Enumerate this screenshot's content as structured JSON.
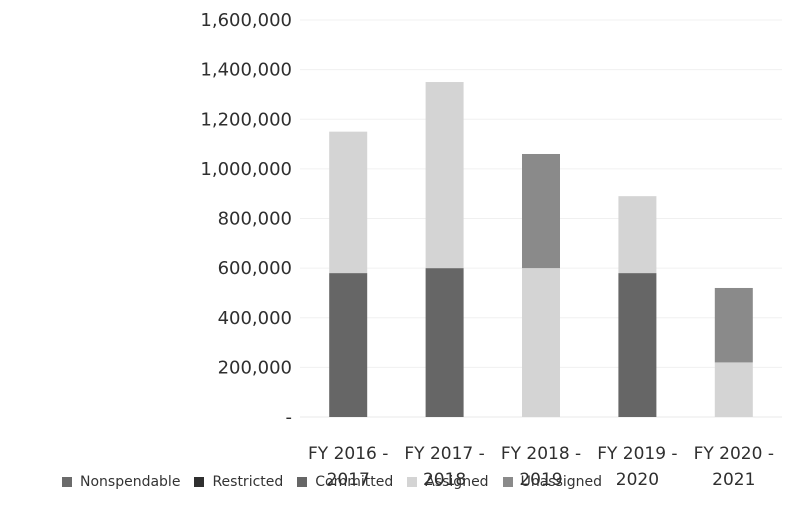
{
  "chart_data": {
    "type": "bar",
    "stacked": true,
    "categories": [
      "FY 2016 - 2017",
      "FY 2017 - 2018",
      "FY 2018 - 2019",
      "FY 2019 - 2020",
      "FY 2020 - 2021"
    ],
    "series": [
      {
        "name": "Nonspendable",
        "values": [
          0,
          0,
          0,
          0,
          0
        ],
        "color": "#6b6b6b"
      },
      {
        "name": "Restricted",
        "values": [
          0,
          0,
          0,
          0,
          0
        ],
        "color": "#2f2f2f"
      },
      {
        "name": "Committed",
        "values": [
          580000,
          600000,
          0,
          580000,
          0
        ],
        "color": "#666666"
      },
      {
        "name": "Assigned",
        "values": [
          570000,
          750000,
          600000,
          310000,
          220000
        ],
        "color": "#d4d4d4"
      },
      {
        "name": "Unassigned",
        "values": [
          0,
          0,
          460000,
          0,
          300000
        ],
        "color": "#8a8a8a"
      }
    ],
    "yticks": [
      "-",
      "200,000",
      "400,000",
      "600,000",
      "800,000",
      "1,000,000",
      "1,200,000",
      "1,400,000",
      "1,600,000"
    ],
    "ylim": [
      0,
      1600000
    ],
    "grid": true,
    "legend": "bottom"
  }
}
